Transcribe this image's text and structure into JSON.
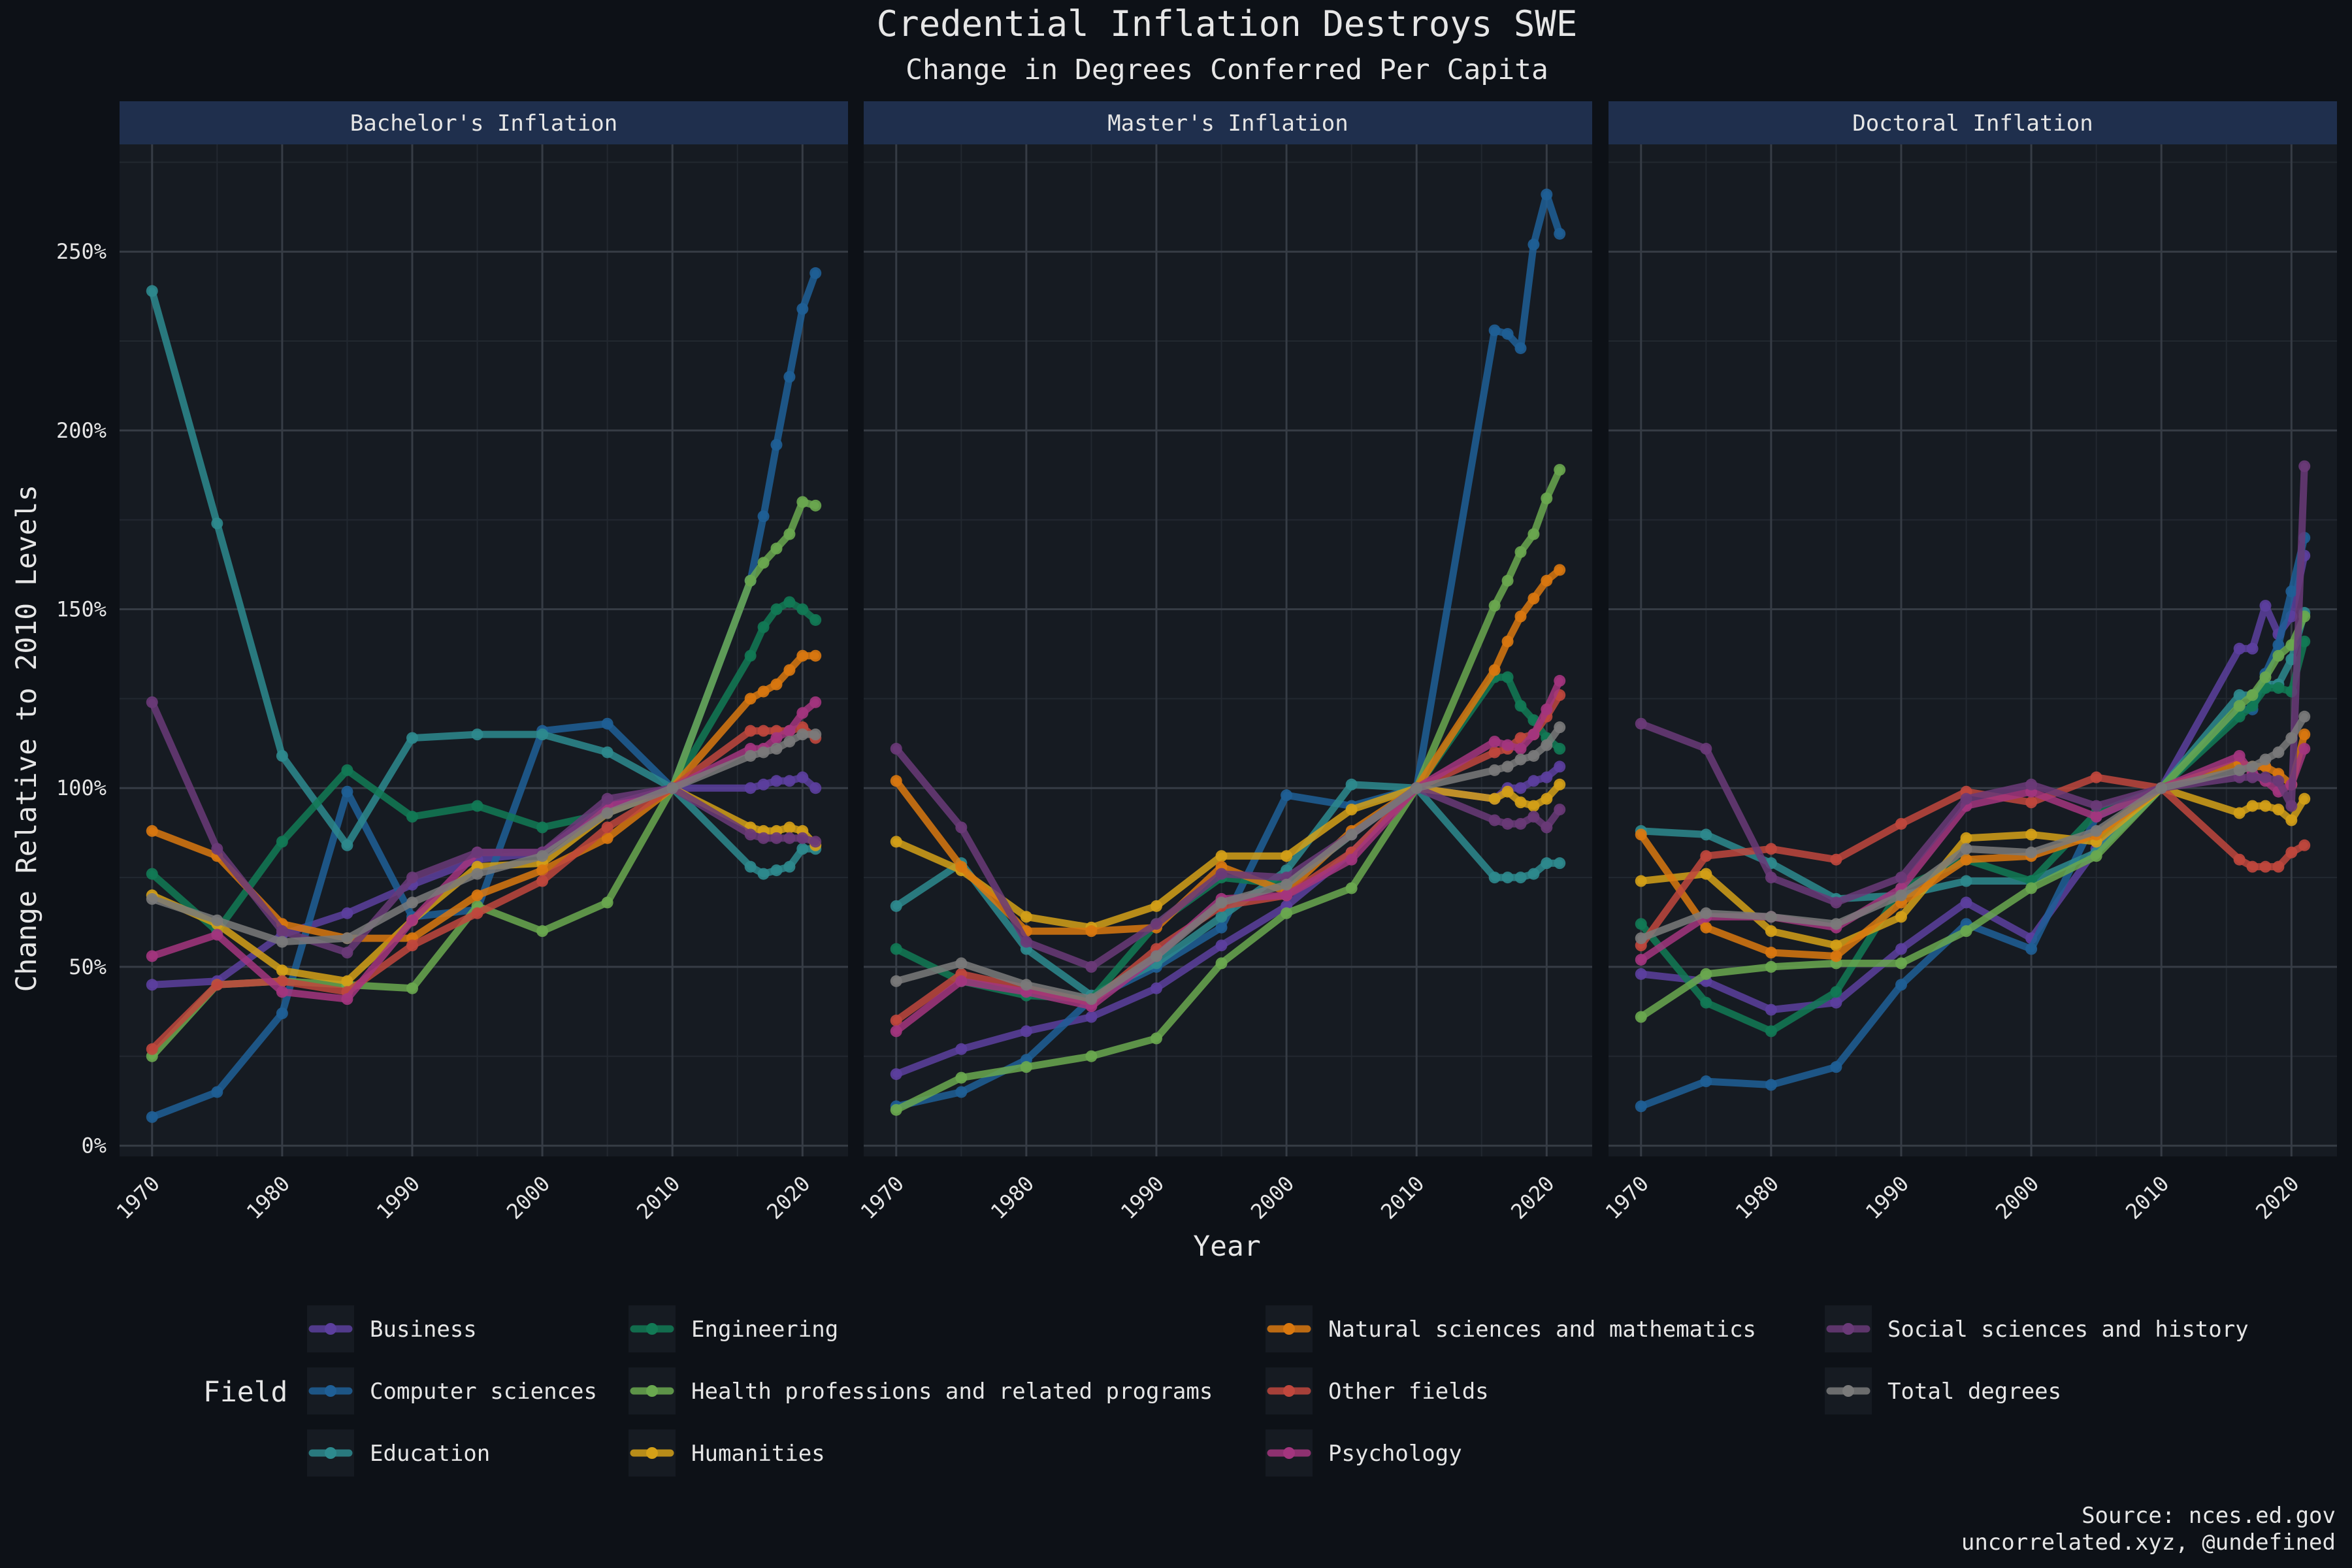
{
  "title": "Credential Inflation Destroys SWE",
  "subtitle": "Change in Degrees Conferred Per Capita",
  "source_lines": [
    "Source: nces.ed.gov",
    "uncorrelated.xyz, @undefined"
  ],
  "chart_data": {
    "type": "line",
    "xlabel": "Year",
    "ylabel": "Change Relative to 2010 Levels",
    "xlim": [
      1967.5,
      2023.5
    ],
    "ylim": [
      -3,
      280
    ],
    "x_ticks": [
      1970,
      1980,
      1990,
      2000,
      2010,
      2020
    ],
    "x_tick_labels": [
      "1970",
      "1980",
      "1990",
      "2000",
      "2010",
      "2020"
    ],
    "y_ticks": [
      0,
      50,
      100,
      150,
      200,
      250
    ],
    "y_tick_labels": [
      "0%",
      "50%",
      "100%",
      "150%",
      "200%",
      "250%"
    ],
    "legend_title": "Field",
    "legend_position": "bottom",
    "years": [
      1970,
      1975,
      1980,
      1985,
      1990,
      1995,
      2000,
      2005,
      2010,
      2016,
      2017,
      2018,
      2019,
      2020,
      2021
    ],
    "fields": [
      {
        "name": "Business",
        "color": "#5c3f9e"
      },
      {
        "name": "Computer sciences",
        "color": "#1f5f96"
      },
      {
        "name": "Education",
        "color": "#2d8a8e"
      },
      {
        "name": "Engineering",
        "color": "#127a55"
      },
      {
        "name": "Health professions and related programs",
        "color": "#6aa84f"
      },
      {
        "name": "Humanities",
        "color": "#d4a017"
      },
      {
        "name": "Natural sciences and mathematics",
        "color": "#d9780f"
      },
      {
        "name": "Other fields",
        "color": "#c0473d"
      },
      {
        "name": "Psychology",
        "color": "#a3357e"
      },
      {
        "name": "Social sciences and history",
        "color": "#6a3a78"
      },
      {
        "name": "Total degrees",
        "color": "#7a7a7a"
      }
    ],
    "panels": [
      {
        "title": "Bachelor's Inflation",
        "series": [
          {
            "name": "Business",
            "values": [
              45,
              46,
              59,
              65,
              73,
              80,
              82,
              95,
              100,
              100,
              101,
              102,
              102,
              103,
              100
            ]
          },
          {
            "name": "Computer sciences",
            "values": [
              8,
              15,
              37,
              99,
              64,
              66,
              116,
              118,
              100,
              158,
              176,
              196,
              215,
              234,
              244
            ]
          },
          {
            "name": "Education",
            "values": [
              239,
              174,
              109,
              84,
              114,
              115,
              115,
              110,
              100,
              78,
              76,
              77,
              78,
              83,
              83
            ]
          },
          {
            "name": "Engineering",
            "values": [
              76,
              60,
              85,
              105,
              92,
              95,
              89,
              93,
              100,
              137,
              145,
              150,
              152,
              150,
              147
            ]
          },
          {
            "name": "Health professions and related programs",
            "values": [
              25,
              45,
              46,
              45,
              44,
              67,
              60,
              68,
              100,
              158,
              163,
              167,
              171,
              180,
              179
            ]
          },
          {
            "name": "Humanities",
            "values": [
              70,
              62,
              49,
              46,
              63,
              78,
              79,
              93,
              100,
              89,
              88,
              88,
              89,
              88,
              84
            ]
          },
          {
            "name": "Natural sciences and mathematics",
            "values": [
              88,
              81,
              62,
              58,
              58,
              70,
              77,
              86,
              100,
              125,
              127,
              129,
              133,
              137,
              137
            ]
          },
          {
            "name": "Other fields",
            "values": [
              27,
              45,
              46,
              43,
              56,
              65,
              74,
              89,
              100,
              116,
              116,
              116,
              116,
              117,
              114
            ]
          },
          {
            "name": "Psychology",
            "values": [
              53,
              59,
              43,
              41,
              63,
              82,
              82,
              95,
              100,
              111,
              111,
              114,
              116,
              121,
              124
            ]
          },
          {
            "name": "Social sciences and history",
            "values": [
              124,
              83,
              60,
              54,
              75,
              82,
              82,
              97,
              100,
              87,
              86,
              86,
              86,
              86,
              85
            ]
          },
          {
            "name": "Total degrees",
            "values": [
              69,
              63,
              57,
              58,
              68,
              76,
              81,
              93,
              100,
              109,
              110,
              111,
              113,
              115,
              115
            ]
          }
        ]
      },
      {
        "title": "Master's Inflation",
        "series": [
          {
            "name": "Business",
            "values": [
              20,
              27,
              32,
              36,
              44,
              56,
              67,
              82,
              100,
              97,
              100,
              100,
              102,
              103,
              106
            ]
          },
          {
            "name": "Computer sciences",
            "values": [
              11,
              15,
              24,
              41,
              50,
              61,
              98,
              95,
              100,
              228,
              227,
              223,
              252,
              266,
              255
            ]
          },
          {
            "name": "Education",
            "values": [
              67,
              79,
              55,
              42,
              51,
              64,
              77,
              101,
              100,
              75,
              75,
              75,
              76,
              79,
              79
            ]
          },
          {
            "name": "Engineering",
            "values": [
              55,
              46,
              42,
              41,
              62,
              75,
              73,
              87,
              100,
              131,
              131,
              123,
              119,
              114,
              111
            ]
          },
          {
            "name": "Health professions and related programs",
            "values": [
              10,
              19,
              22,
              25,
              30,
              51,
              65,
              72,
              100,
              151,
              158,
              166,
              171,
              181,
              189
            ]
          },
          {
            "name": "Humanities",
            "values": [
              85,
              77,
              64,
              61,
              67,
              81,
              81,
              94,
              100,
              97,
              99,
              96,
              95,
              97,
              101
            ]
          },
          {
            "name": "Natural sciences and mathematics",
            "values": [
              102,
              78,
              60,
              60,
              61,
              78,
              71,
              88,
              100,
              133,
              141,
              148,
              153,
              158,
              161
            ]
          },
          {
            "name": "Other fields",
            "values": [
              35,
              48,
              44,
              40,
              55,
              67,
              70,
              82,
              100,
              110,
              111,
              114,
              115,
              120,
              126
            ]
          },
          {
            "name": "Psychology",
            "values": [
              32,
              46,
              43,
              39,
              53,
              69,
              70,
              80,
              100,
              113,
              112,
              111,
              115,
              122,
              130
            ]
          },
          {
            "name": "Social sciences and history",
            "values": [
              111,
              89,
              57,
              50,
              62,
              76,
              75,
              87,
              100,
              91,
              90,
              90,
              92,
              89,
              94
            ]
          },
          {
            "name": "Total degrees",
            "values": [
              46,
              51,
              45,
              41,
              53,
              68,
              73,
              87,
              100,
              105,
              106,
              108,
              109,
              112,
              117
            ]
          }
        ]
      },
      {
        "title": "Doctoral Inflation",
        "series": [
          {
            "name": "Business",
            "values": [
              48,
              46,
              38,
              40,
              55,
              68,
              58,
              83,
              100,
              139,
              139,
              151,
              143,
              148,
              165
            ]
          },
          {
            "name": "Computer sciences",
            "values": [
              11,
              18,
              17,
              22,
              45,
              62,
              55,
              92,
              100,
              122,
              122,
              132,
              140,
              155,
              170
            ]
          },
          {
            "name": "Education",
            "values": [
              88,
              87,
              79,
              69,
              70,
              74,
              74,
              82,
              100,
              126,
              126,
              129,
              129,
              136,
              149
            ]
          },
          {
            "name": "Engineering",
            "values": [
              62,
              40,
              32,
              43,
              72,
              80,
              74,
              93,
              100,
              120,
              123,
              128,
              128,
              127,
              141
            ]
          },
          {
            "name": "Health professions and related programs",
            "values": [
              36,
              48,
              50,
              51,
              51,
              60,
              72,
              81,
              100,
              123,
              126,
              131,
              137,
              140,
              148
            ]
          },
          {
            "name": "Humanities",
            "values": [
              74,
              76,
              60,
              56,
              64,
              86,
              87,
              85,
              100,
              93,
              95,
              95,
              94,
              91,
              97
            ]
          },
          {
            "name": "Natural sciences and mathematics",
            "values": [
              87,
              61,
              54,
              53,
              68,
              80,
              81,
              87,
              100,
              107,
              106,
              106,
              104,
              101,
              115
            ]
          },
          {
            "name": "Other fields",
            "values": [
              56,
              81,
              83,
              80,
              90,
              99,
              96,
              103,
              100,
              80,
              78,
              78,
              78,
              82,
              84
            ]
          },
          {
            "name": "Psychology",
            "values": [
              52,
              64,
              64,
              61,
              72,
              95,
              99,
              92,
              100,
              109,
              104,
              102,
              99,
              101,
              111
            ]
          },
          {
            "name": "Social sciences and history",
            "values": [
              118,
              111,
              75,
              68,
              75,
              97,
              101,
              95,
              100,
              103,
              103,
              103,
              102,
              95,
              190
            ]
          },
          {
            "name": "Total degrees",
            "values": [
              58,
              65,
              64,
              62,
              70,
              83,
              82,
              88,
              100,
              105,
              106,
              108,
              110,
              114,
              120
            ]
          }
        ]
      }
    ]
  }
}
